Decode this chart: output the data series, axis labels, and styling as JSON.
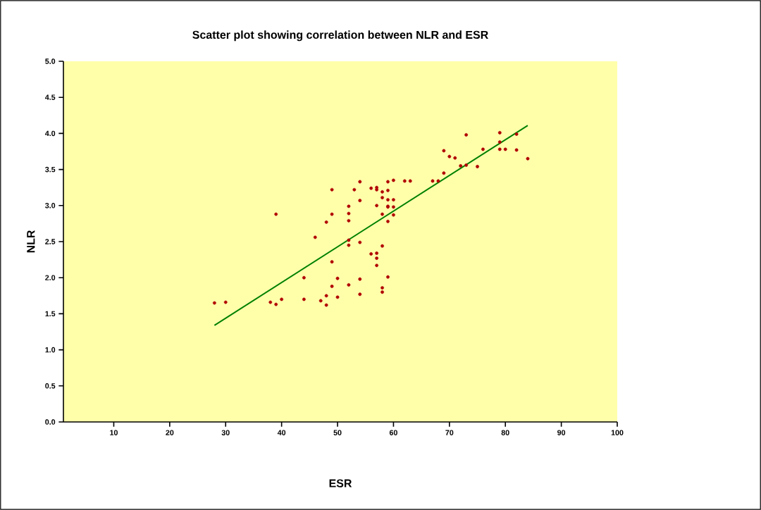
{
  "chart_data": {
    "type": "scatter",
    "title": "Scatter plot showing correlation between NLR and ESR",
    "xlabel": "ESR",
    "ylabel": "NLR",
    "xlim": [
      1,
      100
    ],
    "xticks": [
      10,
      20,
      30,
      40,
      50,
      60,
      70,
      80,
      90,
      100
    ],
    "ylim": [
      0,
      5
    ],
    "yticks": [
      {
        "value": 0,
        "label": "0.0"
      },
      {
        "value": 0.5,
        "label": "0.5"
      },
      {
        "value": 1,
        "label": "1.0"
      },
      {
        "value": 1.5,
        "label": "1.5"
      },
      {
        "value": 2,
        "label": "2.0"
      },
      {
        "value": 2.5,
        "label": "2.5"
      },
      {
        "value": 3,
        "label": "3.0"
      },
      {
        "value": 3.5,
        "label": "3.5"
      },
      {
        "value": 4,
        "label": "4.0"
      },
      {
        "value": 4.5,
        "label": "4.5"
      },
      {
        "value": 5,
        "label": "5.0"
      }
    ],
    "grid": false,
    "series": [
      {
        "marker": "circle",
        "color": "#b00000",
        "x": [
          28,
          30,
          38,
          39,
          39,
          40,
          44,
          44,
          46,
          47,
          48,
          48,
          48,
          49,
          49,
          49,
          49,
          50,
          50,
          52,
          52,
          52,
          52,
          52,
          52,
          53,
          54,
          54,
          54,
          54,
          54,
          56,
          56,
          57,
          57,
          57,
          57,
          57,
          57,
          58,
          58,
          58,
          58,
          58,
          58,
          59,
          59,
          59,
          59,
          59,
          59,
          59,
          60,
          60,
          60,
          60,
          62,
          63,
          67,
          68,
          69,
          69,
          70,
          71,
          72,
          73,
          73,
          75,
          76,
          79,
          79,
          79,
          80,
          82,
          82,
          84
        ],
        "values": [
          1.65,
          1.66,
          1.66,
          1.63,
          2.88,
          1.7,
          2.0,
          1.7,
          2.56,
          1.68,
          2.77,
          1.75,
          1.62,
          3.22,
          2.88,
          2.22,
          1.88,
          1.99,
          1.73,
          2.99,
          2.89,
          2.79,
          2.52,
          2.45,
          1.9,
          3.22,
          3.33,
          3.07,
          2.49,
          1.98,
          1.77,
          3.24,
          2.33,
          3.25,
          3.22,
          3.0,
          2.34,
          2.27,
          2.17,
          3.19,
          3.11,
          2.88,
          2.44,
          1.86,
          1.8,
          3.33,
          3.21,
          3.08,
          2.99,
          2.98,
          2.78,
          2.01,
          3.35,
          3.08,
          2.98,
          2.87,
          3.34,
          3.34,
          3.34,
          3.34,
          3.76,
          3.45,
          3.68,
          3.66,
          3.55,
          3.98,
          3.56,
          3.54,
          3.78,
          4.01,
          3.88,
          3.78,
          3.78,
          3.99,
          3.77,
          3.65
        ]
      },
      {
        "type": "line",
        "marker": "none",
        "color": "#008000",
        "x": [
          28,
          84
        ],
        "values": [
          1.34,
          4.11
        ]
      }
    ]
  }
}
